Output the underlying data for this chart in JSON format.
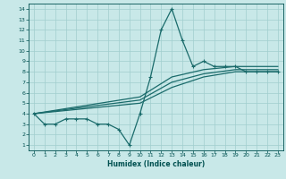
{
  "xlabel": "Humidex (Indice chaleur)",
  "bg_color": "#c8e8e8",
  "line_color": "#1a6b6b",
  "xlim": [
    -0.5,
    23.5
  ],
  "ylim": [
    0.5,
    14.5
  ],
  "xticks": [
    0,
    1,
    2,
    3,
    4,
    5,
    6,
    7,
    8,
    9,
    10,
    11,
    12,
    13,
    14,
    15,
    16,
    17,
    18,
    19,
    20,
    21,
    22,
    23
  ],
  "yticks": [
    1,
    2,
    3,
    4,
    5,
    6,
    7,
    8,
    9,
    10,
    11,
    12,
    13,
    14
  ],
  "main_line": {
    "x": [
      0,
      1,
      2,
      3,
      4,
      5,
      6,
      7,
      8,
      9,
      10,
      11,
      12,
      13,
      14,
      15,
      16,
      17,
      18,
      19,
      20,
      21,
      22,
      23
    ],
    "y": [
      4,
      3,
      3,
      3.5,
      3.5,
      3.5,
      3,
      3,
      2.5,
      1,
      4,
      7.5,
      12,
      14,
      11,
      8.5,
      9,
      8.5,
      8.5,
      8.5,
      8,
      8,
      8,
      8
    ]
  },
  "smooth_lines": [
    {
      "x": [
        0,
        10,
        13,
        16,
        19,
        23
      ],
      "y": [
        4,
        5.0,
        6.5,
        7.5,
        8.0,
        8.0
      ]
    },
    {
      "x": [
        0,
        10,
        13,
        16,
        19,
        23
      ],
      "y": [
        4,
        5.3,
        7.0,
        7.8,
        8.2,
        8.2
      ]
    },
    {
      "x": [
        0,
        10,
        13,
        16,
        19,
        23
      ],
      "y": [
        4,
        5.6,
        7.5,
        8.2,
        8.5,
        8.5
      ]
    }
  ],
  "grid_color": "#a0cece",
  "spine_color": "#005050"
}
